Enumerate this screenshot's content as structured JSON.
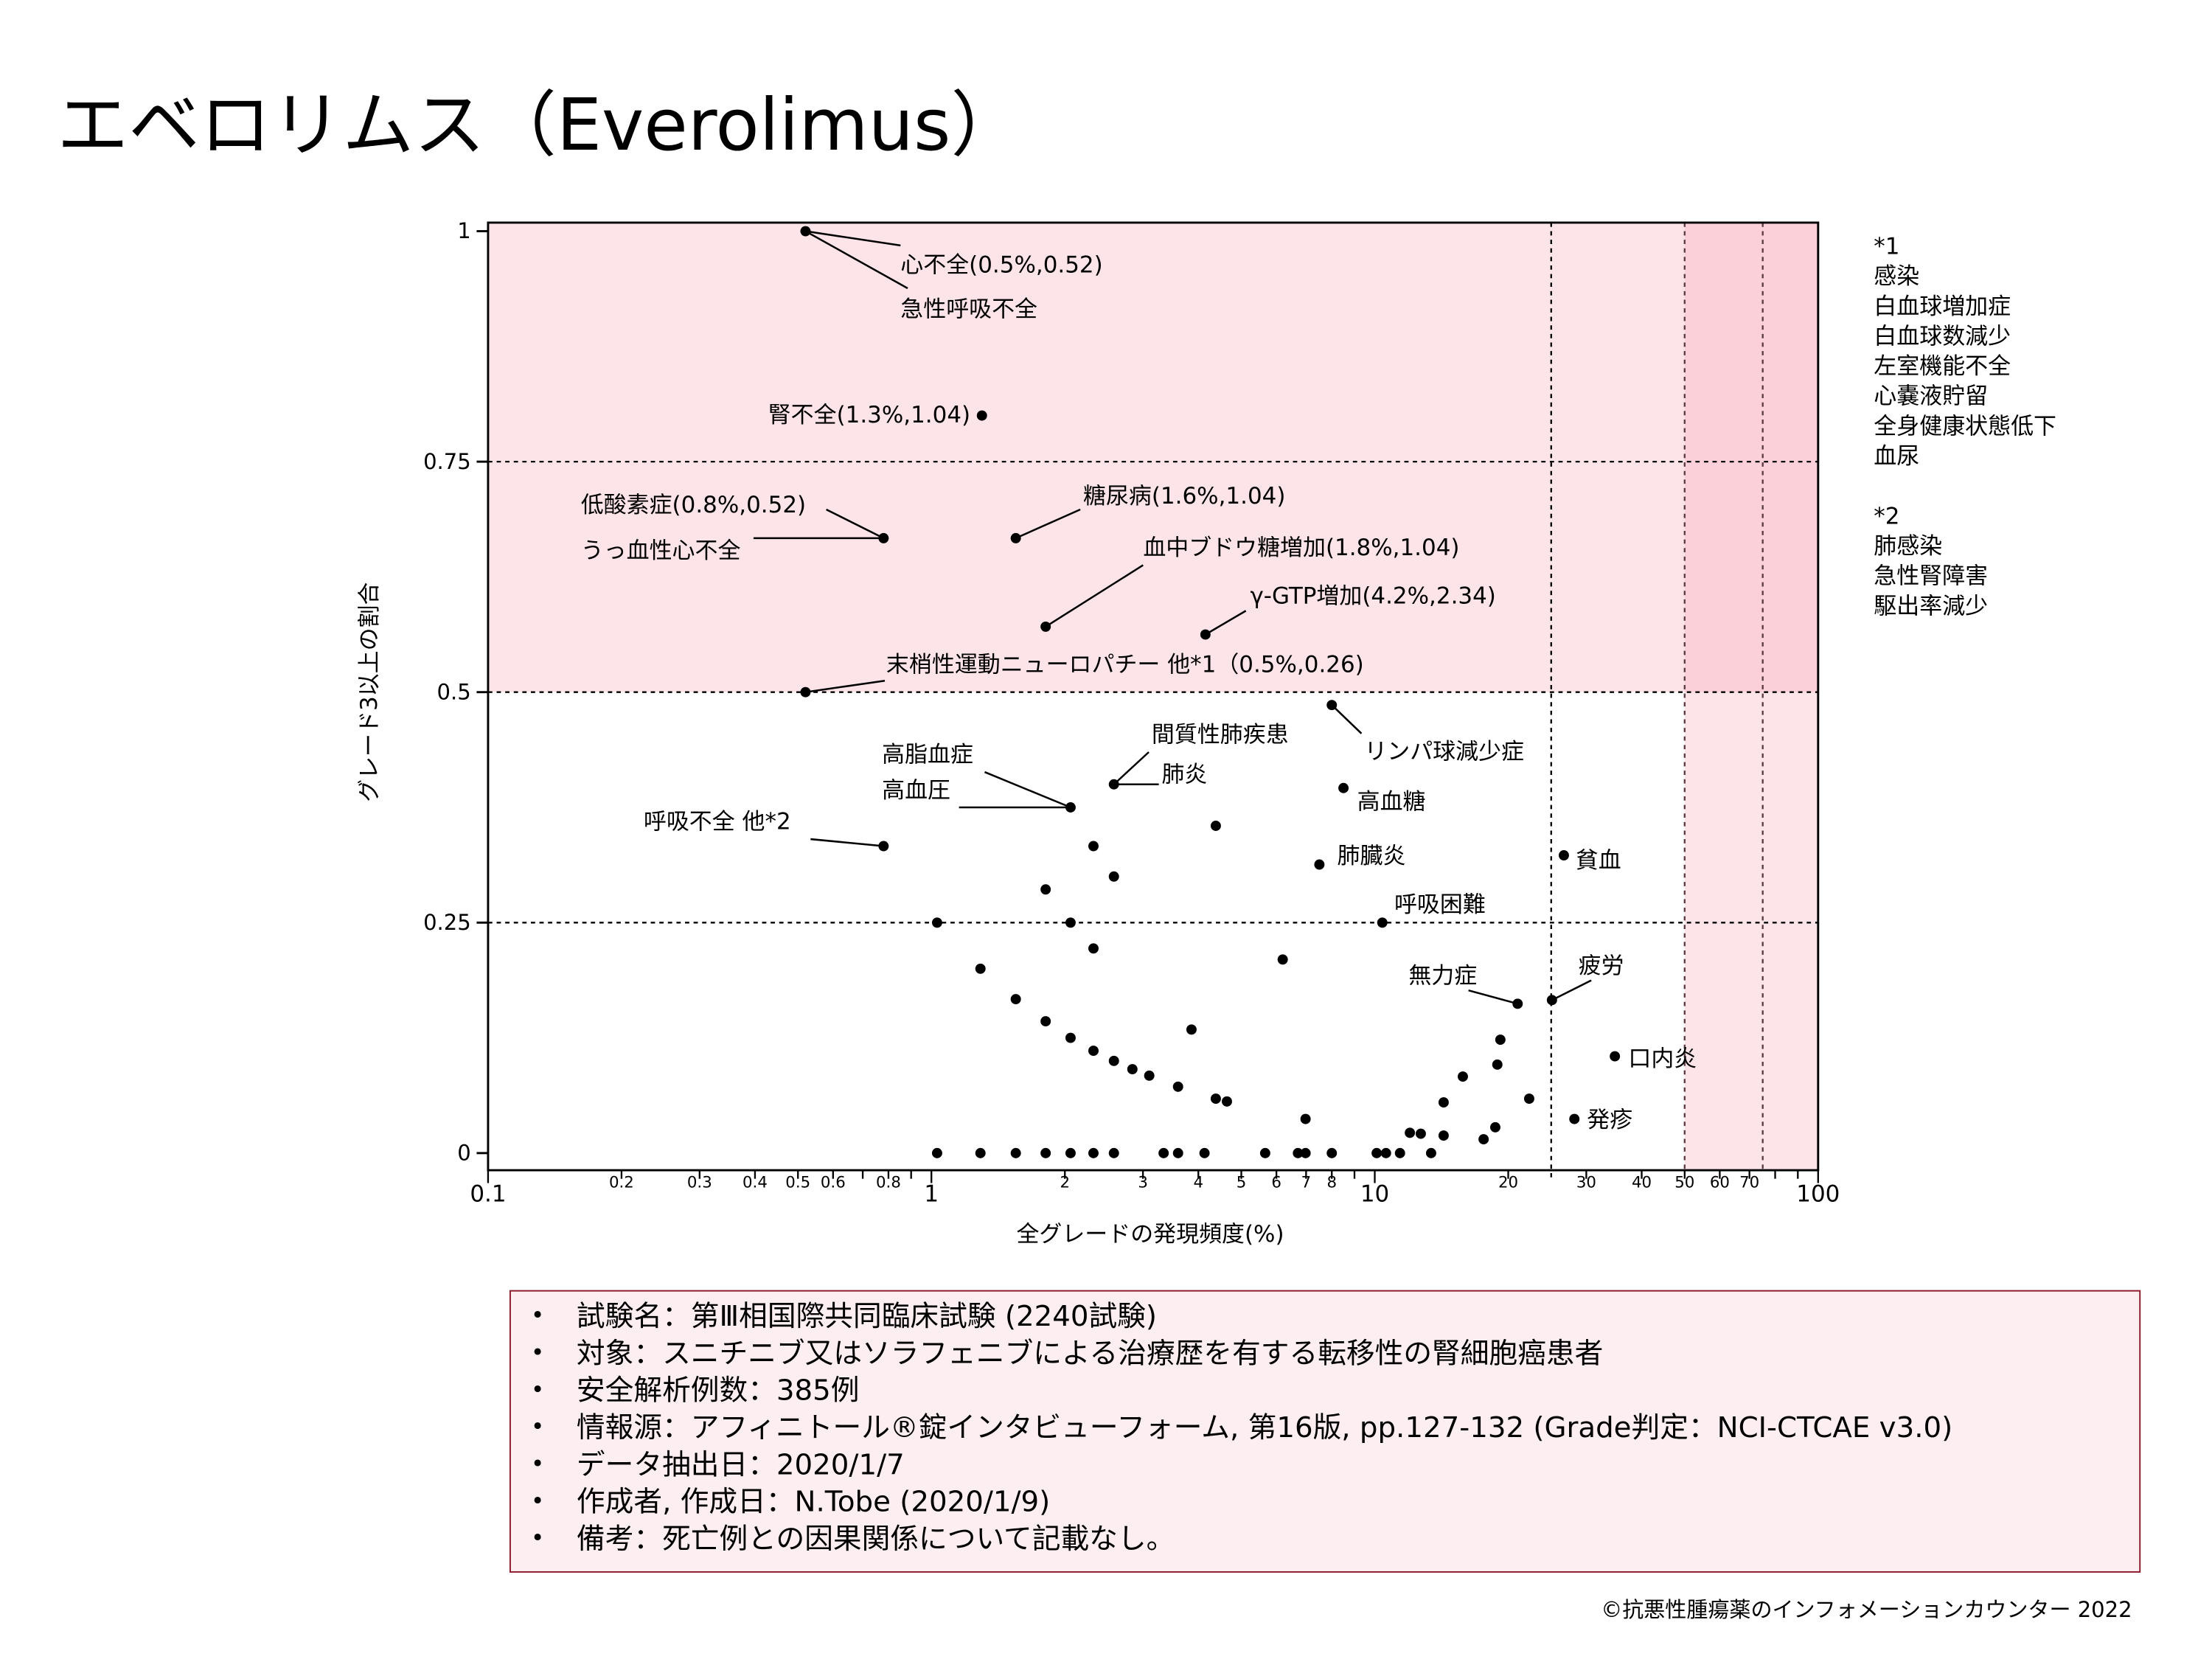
{
  "title": "エベロリムス（Everolimus）",
  "notes": {
    "note1_title": "*1",
    "note1_items": [
      "感染",
      "白血球増加症",
      "白血球数減少",
      "左室機能不全",
      "心嚢液貯留",
      "全身健康状態低下",
      "血尿"
    ],
    "note2_title": "*2",
    "note2_items": [
      "肺感染",
      "急性腎障害",
      "駆出率減少"
    ]
  },
  "info": {
    "items": [
      "試験名：第Ⅲ相国際共同臨床試験 (2240試験)",
      "対象：スニチニブ又はソラフェニブによる治療歴を有する転移性の腎細胞癌患者",
      "安全解析例数：385例",
      "情報源：アフィニトール®錠インタビューフォーム, 第16版, pp.127-132 (Grade判定：NCI-CTCAE v3.0)",
      "データ抽出日：2020/1/7",
      "作成者, 作成日：N.Tobe (2020/1/9)",
      "備考：死亡例との因果関係について記載なし。"
    ],
    "border_color": "#8b1a2b",
    "background_color": "#fdeef1"
  },
  "footer": "©抗悪性腫瘍薬のインフォメーションカウンター  2022",
  "chart_data": {
    "type": "scatter",
    "xlabel": "全グレードの発現頻度(%)",
    "ylabel": "グレード3以上の割合",
    "x_scale": "log",
    "xlim": [
      0.1,
      100
    ],
    "ylim": [
      0,
      1
    ],
    "x_major_ticks": [
      "0.1",
      "1",
      "10",
      "100"
    ],
    "x_minor_tick_labels": [
      "0.2",
      "0.3",
      "0.4",
      "0.5",
      "0.6",
      "0.8",
      "2",
      "3",
      "4",
      "5",
      "6",
      "7",
      "8",
      "20",
      "30",
      "40",
      "50",
      "60",
      "70"
    ],
    "y_ticks": [
      "0",
      "0.25",
      "0.5",
      "0.75",
      "1"
    ],
    "reference_lines_y": [
      0.25,
      0.5,
      0.75
    ],
    "reference_lines_x": [
      25,
      50,
      75
    ],
    "shaded_regions": [
      {
        "y_from": 0.5,
        "y_to": 1
      },
      {
        "x_from": 50,
        "x_to": 100
      }
    ],
    "colors": {
      "shade": "#fde4e8",
      "shade_overlap": "#fbd0d8",
      "point": "#000000",
      "ref_line_right": "#5a3a40"
    },
    "points": [
      [
        0.52,
        1
      ],
      [
        1.3,
        0.8
      ],
      [
        0.78,
        0.667
      ],
      [
        1.55,
        0.667
      ],
      [
        1.81,
        0.571
      ],
      [
        4.15,
        0.5625
      ],
      [
        0.52,
        0.5
      ],
      [
        8.0,
        0.486
      ],
      [
        2.58,
        0.4
      ],
      [
        8.5,
        0.396
      ],
      [
        2.06,
        0.375
      ],
      [
        4.38,
        0.355
      ],
      [
        0.78,
        0.333
      ],
      [
        2.32,
        0.333
      ],
      [
        26.7,
        0.323
      ],
      [
        7.5,
        0.313
      ],
      [
        2.58,
        0.3
      ],
      [
        1.81,
        0.286
      ],
      [
        1.03,
        0.25
      ],
      [
        2.06,
        0.25
      ],
      [
        10.4,
        0.25
      ],
      [
        2.32,
        0.222
      ],
      [
        6.2,
        0.21
      ],
      [
        1.29,
        0.2
      ],
      [
        1.55,
        0.167
      ],
      [
        25.1,
        0.166
      ],
      [
        21.0,
        0.162
      ],
      [
        1.81,
        0.143
      ],
      [
        3.86,
        0.134
      ],
      [
        2.06,
        0.125
      ],
      [
        19.2,
        0.123
      ],
      [
        2.32,
        0.111
      ],
      [
        34.8,
        0.105
      ],
      [
        2.58,
        0.1
      ],
      [
        18.9,
        0.096
      ],
      [
        2.84,
        0.091
      ],
      [
        3.1,
        0.084
      ],
      [
        15.8,
        0.083
      ],
      [
        3.6,
        0.072
      ],
      [
        4.38,
        0.059
      ],
      [
        22.3,
        0.059
      ],
      [
        4.64,
        0.056
      ],
      [
        14.3,
        0.055
      ],
      [
        6.98,
        0.037
      ],
      [
        28.2,
        0.037
      ],
      [
        18.7,
        0.028
      ],
      [
        12.0,
        0.022
      ],
      [
        12.7,
        0.021
      ],
      [
        14.3,
        0.019
      ],
      [
        17.6,
        0.015
      ],
      [
        1.03,
        0
      ],
      [
        1.29,
        0
      ],
      [
        1.55,
        0
      ],
      [
        1.81,
        0
      ],
      [
        2.06,
        0
      ],
      [
        2.32,
        0
      ],
      [
        2.58,
        0
      ],
      [
        3.34,
        0
      ],
      [
        3.6,
        0
      ],
      [
        4.13,
        0
      ],
      [
        5.66,
        0
      ],
      [
        6.71,
        0
      ],
      [
        6.98,
        0
      ],
      [
        8.0,
        0
      ],
      [
        10.1,
        0
      ],
      [
        10.6,
        0
      ],
      [
        11.4,
        0
      ],
      [
        13.4,
        0
      ]
    ],
    "annotations": [
      {
        "text": "心不全(0.5%,0.52)",
        "x": 0.52,
        "y": 1
      },
      {
        "text": "急性呼吸不全",
        "x": 0.52,
        "y": 1
      },
      {
        "text": "腎不全(1.3%,1.04)",
        "x": 1.3,
        "y": 0.8
      },
      {
        "text": "低酸素症(0.8%,0.52)",
        "x": 0.78,
        "y": 0.667
      },
      {
        "text": "うっ血性心不全",
        "x": 0.78,
        "y": 0.667
      },
      {
        "text": "糖尿病(1.6%,1.04)",
        "x": 1.55,
        "y": 0.667
      },
      {
        "text": "血中ブドウ糖増加(1.8%,1.04)",
        "x": 1.81,
        "y": 0.571
      },
      {
        "text": "γ-GTP増加(4.2%,2.34)",
        "x": 4.15,
        "y": 0.5625
      },
      {
        "text": "末梢性運動ニューロパチー 他*1（0.5%,0.26)",
        "x": 0.52,
        "y": 0.5
      },
      {
        "text": "リンパ球減少症",
        "x": 8.0,
        "y": 0.486
      },
      {
        "text": "間質性肺疾患",
        "x": 2.58,
        "y": 0.4
      },
      {
        "text": "肺炎",
        "x": 2.58,
        "y": 0.4
      },
      {
        "text": "高脂血症",
        "x": 2.06,
        "y": 0.375
      },
      {
        "text": "高血圧",
        "x": 2.06,
        "y": 0.375
      },
      {
        "text": "呼吸不全 他*2",
        "x": 0.78,
        "y": 0.333
      },
      {
        "text": "高血糖",
        "x": 8.5,
        "y": 0.396
      },
      {
        "text": "肺臓炎",
        "x": 7.5,
        "y": 0.313
      },
      {
        "text": "呼吸困難",
        "x": 10.4,
        "y": 0.25
      },
      {
        "text": "貧血",
        "x": 26.7,
        "y": 0.323
      },
      {
        "text": "無力症",
        "x": 21.0,
        "y": 0.162
      },
      {
        "text": "疲労",
        "x": 25.1,
        "y": 0.166
      },
      {
        "text": "口内炎",
        "x": 34.8,
        "y": 0.105
      },
      {
        "text": "発疹",
        "x": 28.2,
        "y": 0.037
      }
    ]
  }
}
